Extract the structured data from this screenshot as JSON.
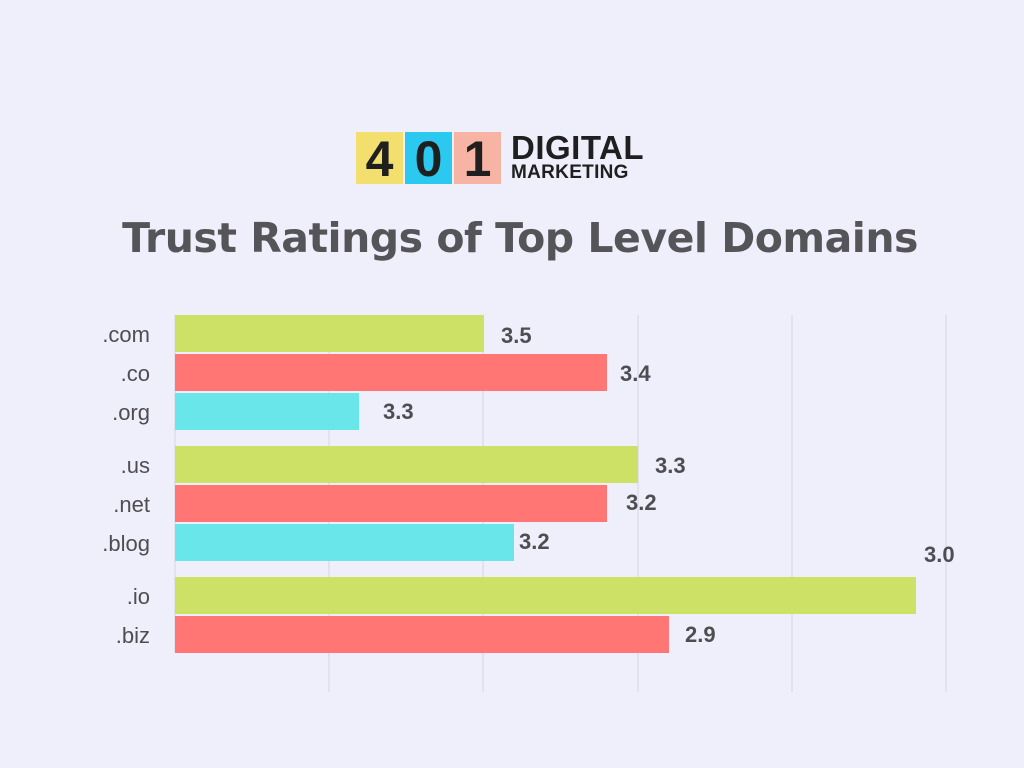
{
  "logo": {
    "digits": [
      {
        "text": "4",
        "color": "#f2df6e"
      },
      {
        "text": "0",
        "color": "#2bc9f0"
      },
      {
        "text": "1",
        "color": "#f7b3a3"
      }
    ],
    "line1": "DIGITAL",
    "line2": "MARKETING"
  },
  "chart_data": {
    "type": "bar",
    "orientation": "horizontal",
    "title": "Trust Ratings of Top Level Domains",
    "xlabel": "",
    "ylabel": "",
    "grid": true,
    "colors": {
      "lime": "#cde166",
      "coral": "#ff7675",
      "cyan": "#69e6ea",
      "grid": "#d5d4e0",
      "text": "#4e4e52"
    },
    "groups": [
      {
        "bars": [
          {
            "category": ".com",
            "value": 3.5,
            "color": "lime"
          },
          {
            "category": ".co",
            "value": 3.4,
            "color": "coral"
          },
          {
            "category": ".org",
            "value": 3.3,
            "color": "cyan"
          }
        ]
      },
      {
        "bars": [
          {
            "category": ".us",
            "value": 3.3,
            "color": "lime"
          },
          {
            "category": ".net",
            "value": 3.2,
            "color": "coral"
          },
          {
            "category": ".blog",
            "value": 3.2,
            "color": "cyan"
          }
        ]
      },
      {
        "bars": [
          {
            "category": ".io",
            "value": 3.0,
            "color": "lime"
          },
          {
            "category": ".biz",
            "value": 2.9,
            "color": "coral"
          }
        ]
      }
    ]
  }
}
